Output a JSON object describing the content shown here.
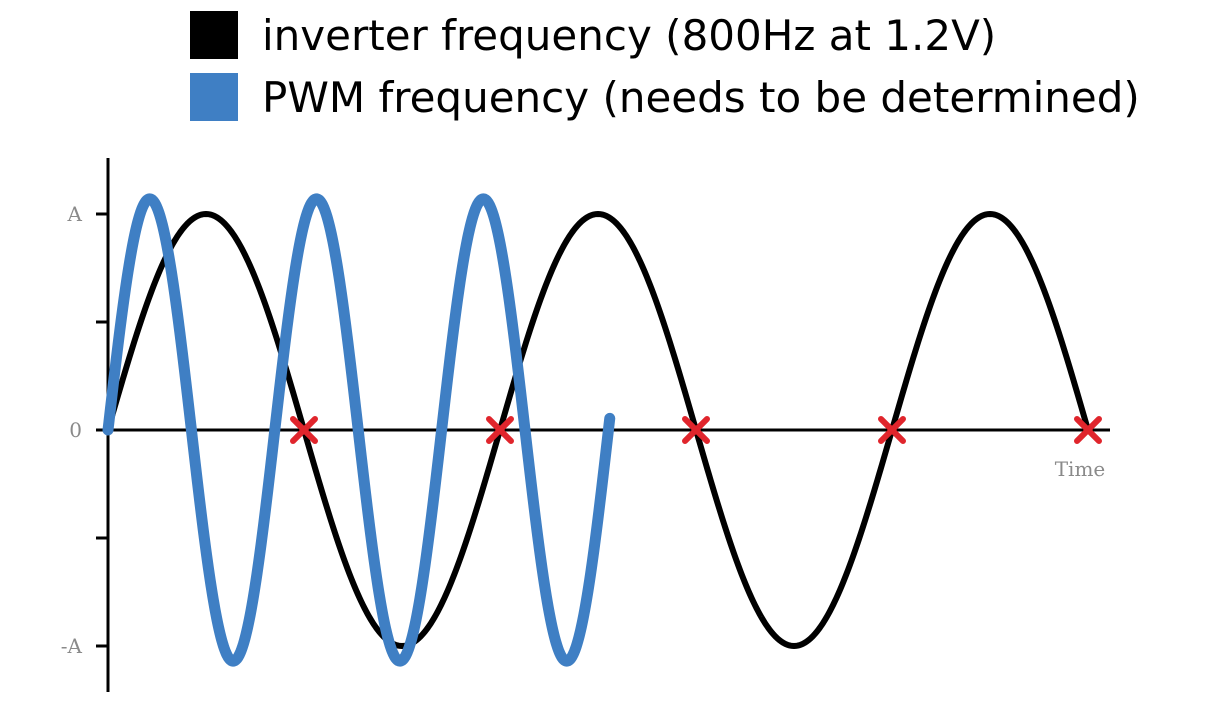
{
  "chart_data": {
    "type": "line",
    "title": "",
    "xlabel": "Time",
    "ylabel": "",
    "y_ticks": [
      {
        "label": "A",
        "value": 1
      },
      {
        "label": "",
        "value": 0.5
      },
      {
        "label": "0",
        "value": 0
      },
      {
        "label": "",
        "value": -0.5
      },
      {
        "label": "-A",
        "value": -1
      }
    ],
    "ylim": [
      -1.2,
      1.2
    ],
    "xlim": [
      0,
      2.5
    ],
    "grid": false,
    "legend_position": "top",
    "series": [
      {
        "name": "inverter frequency (800Hz at 1.2V)",
        "color": "#000000",
        "amplitude": 1.0,
        "cycles_per_unit": 1,
        "x_start": 0,
        "x_end": 2.5
      },
      {
        "name": "PWM frequency (needs to be determined)",
        "color": "#3f7fc4",
        "amplitude": 1.07,
        "cycles_per_unit": 2.35,
        "x_start": 0,
        "x_end": 1.28
      }
    ],
    "zero_crossing_markers": {
      "color": "#e0252c",
      "x": [
        0.5,
        1.0,
        1.5,
        2.0,
        2.5
      ]
    }
  }
}
